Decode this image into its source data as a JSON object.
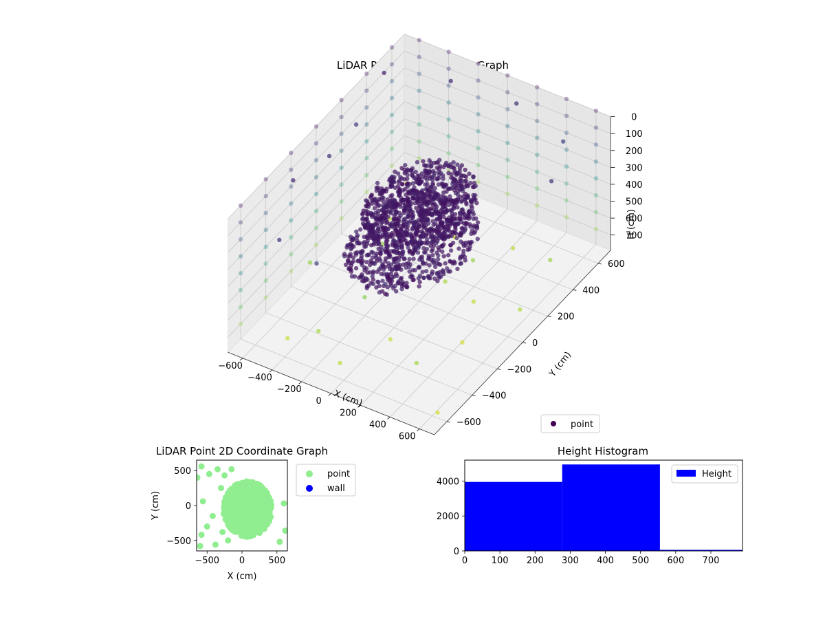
{
  "chart_data": [
    {
      "type": "scatter",
      "projection": "3d",
      "title": "LiDAR Point 3D Coordinate Graph",
      "xlabel": "X (cm)",
      "ylabel": "Y (cm)",
      "zlabel": "H (cm)",
      "x_ticks": [
        -600,
        -400,
        -200,
        0,
        200,
        400,
        600
      ],
      "x_tick_labels": [
        "−600",
        "−400",
        "−200",
        "0",
        "200",
        "400",
        "600"
      ],
      "y_ticks": [
        -600,
        -400,
        -200,
        0,
        200,
        400,
        600
      ],
      "y_tick_labels": [
        "−600",
        "−400",
        "−200",
        "0",
        "200",
        "400",
        "600"
      ],
      "z_ticks": [
        0,
        100,
        200,
        300,
        400,
        500,
        600,
        700
      ],
      "z_tick_labels": [
        "0",
        "100",
        "200",
        "300",
        "400",
        "500",
        "600",
        "700"
      ],
      "xlim": [
        -700,
        700
      ],
      "ylim": [
        -700,
        700
      ],
      "zlim": [
        0,
        790
      ],
      "z_inverted": true,
      "colormap": "viridis",
      "grid": true,
      "legend": {
        "entries": [
          "point"
        ],
        "placement": "lower-right"
      },
      "series": [
        {
          "name": "point",
          "color": "#440154",
          "clusters": [
            {
              "center": [
                0,
                0,
                220
              ],
              "radius": 300,
              "count": 700
            },
            {
              "center": [
                -50,
                0,
                450
              ],
              "radius": 350,
              "count": 700
            }
          ],
          "scattered": [
            [
              -600,
              -300,
              50
            ],
            [
              -560,
              -60,
              80
            ],
            [
              -600,
              200,
              110
            ],
            [
              -650,
              480,
              40
            ],
            [
              -420,
              -620,
              90
            ],
            [
              -300,
              600,
              60
            ],
            [
              -150,
              -640,
              120
            ],
            [
              120,
              630,
              70
            ],
            [
              300,
              -620,
              100
            ],
            [
              480,
              580,
              130
            ],
            [
              620,
              -400,
              40
            ],
            [
              640,
              300,
              90
            ],
            [
              -500,
              350,
              750
            ],
            [
              -300,
              -450,
              720
            ],
            [
              -120,
              420,
              780
            ],
            [
              60,
              -300,
              760
            ],
            [
              250,
              450,
              740
            ],
            [
              420,
              -150,
              770
            ],
            [
              580,
              120,
              730
            ],
            [
              -640,
              -120,
              690
            ],
            [
              -380,
              150,
              700
            ],
            [
              -200,
              -200,
              680
            ],
            [
              150,
              250,
              690
            ],
            [
              340,
              -420,
              710
            ],
            [
              520,
              430,
              700
            ],
            [
              -60,
              -560,
              740
            ],
            [
              90,
              100,
              720
            ],
            [
              -450,
              -520,
              760
            ],
            [
              620,
              -580,
              780
            ],
            [
              -600,
              600,
              770
            ],
            [
              300,
              80,
              750
            ],
            [
              -240,
              560,
              720
            ]
          ],
          "wall_grid": {
            "step": 200,
            "h_range": [
              0,
              700
            ]
          }
        }
      ]
    },
    {
      "type": "scatter",
      "title": "LiDAR Point 2D Coordinate Graph",
      "xlabel": "X (cm)",
      "ylabel": "Y (cm)",
      "x_ticks": [
        -500,
        0,
        500
      ],
      "x_tick_labels": [
        "−500",
        "0",
        "500"
      ],
      "y_ticks": [
        -500,
        0,
        500
      ],
      "y_tick_labels": [
        "−500",
        "0",
        "500"
      ],
      "xlim": [
        -650,
        650
      ],
      "ylim": [
        -650,
        650
      ],
      "legend": {
        "entries": [
          "point",
          "wall"
        ],
        "placement": "outside-right"
      },
      "series": [
        {
          "name": "point",
          "color": "#90ee90",
          "blob": {
            "center": [
              80,
              -50
            ],
            "radius": 330,
            "count": 900
          },
          "scattered": [
            [
              -580,
              560
            ],
            [
              -470,
              450
            ],
            [
              -350,
              520
            ],
            [
              -250,
              430
            ],
            [
              -580,
              -420
            ],
            [
              -600,
              -580
            ],
            [
              -380,
              -560
            ],
            [
              -500,
              -300
            ],
            [
              -280,
              -380
            ],
            [
              -560,
              60
            ],
            [
              -300,
              250
            ],
            [
              -420,
              -150
            ],
            [
              540,
              -520
            ],
            [
              600,
              30
            ],
            [
              620,
              -360
            ],
            [
              -640,
              400
            ],
            [
              -150,
              520
            ],
            [
              -200,
              -500
            ]
          ]
        },
        {
          "name": "wall",
          "color": "#0000ff",
          "points": []
        }
      ]
    },
    {
      "type": "bar",
      "subtype": "histogram",
      "title": "Height Histogram",
      "xlim": [
        0,
        790
      ],
      "ylim": [
        0,
        5200
      ],
      "x_ticks": [
        0,
        100,
        200,
        300,
        400,
        500,
        600,
        700
      ],
      "x_tick_labels": [
        "0",
        "100",
        "200",
        "300",
        "400",
        "500",
        "600",
        "700"
      ],
      "y_ticks": [
        0,
        2000,
        4000
      ],
      "y_tick_labels": [
        "0",
        "2000",
        "4000"
      ],
      "bins": [
        0,
        277,
        555,
        790
      ],
      "counts": [
        3950,
        4950,
        60
      ],
      "legend": {
        "entries": [
          "Height"
        ],
        "placement": "top-right"
      },
      "series": [
        {
          "name": "Height",
          "color": "#0000ff"
        }
      ]
    }
  ]
}
